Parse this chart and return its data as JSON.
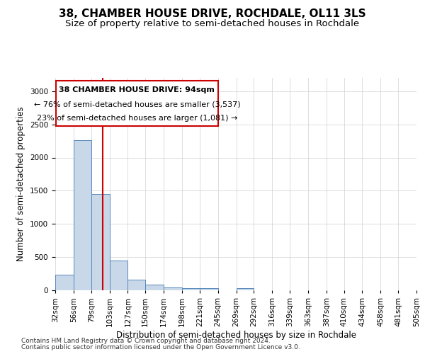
{
  "title": "38, CHAMBER HOUSE DRIVE, ROCHDALE, OL11 3LS",
  "subtitle": "Size of property relative to semi-detached houses in Rochdale",
  "xlabel": "Distribution of semi-detached houses by size in Rochdale",
  "ylabel": "Number of semi-detached properties",
  "footnote1": "Contains HM Land Registry data © Crown copyright and database right 2024.",
  "footnote2": "Contains public sector information licensed under the Open Government Licence v3.0.",
  "annotation_title": "38 CHAMBER HOUSE DRIVE: 94sqm",
  "annotation_line1": "← 76% of semi-detached houses are smaller (3,537)",
  "annotation_line2": "23% of semi-detached houses are larger (1,081) →",
  "property_size": 94,
  "bin_edges": [
    32,
    56,
    79,
    103,
    127,
    150,
    174,
    198,
    221,
    245,
    269,
    292,
    316,
    339,
    363,
    387,
    410,
    434,
    458,
    481,
    505
  ],
  "bin_labels": [
    "32sqm",
    "56sqm",
    "79sqm",
    "103sqm",
    "127sqm",
    "150sqm",
    "174sqm",
    "198sqm",
    "221sqm",
    "245sqm",
    "269sqm",
    "292sqm",
    "316sqm",
    "339sqm",
    "363sqm",
    "387sqm",
    "410sqm",
    "434sqm",
    "458sqm",
    "481sqm",
    "505sqm"
  ],
  "counts": [
    230,
    2260,
    1450,
    450,
    155,
    90,
    45,
    35,
    30,
    0,
    30,
    0,
    0,
    0,
    0,
    0,
    0,
    0,
    0,
    0
  ],
  "bar_color": "#c8d8e8",
  "bar_edge_color": "#5588bb",
  "vline_color": "#cc0000",
  "vline_x": 94,
  "annotation_box_edge_color": "#cc0000",
  "grid_color": "#d0d0d0",
  "ylim": [
    0,
    3200
  ],
  "yticks": [
    0,
    500,
    1000,
    1500,
    2000,
    2500,
    3000
  ],
  "background_color": "#ffffff",
  "title_fontsize": 11,
  "subtitle_fontsize": 9.5,
  "axis_label_fontsize": 8.5,
  "tick_fontsize": 7.5,
  "annotation_fontsize": 8,
  "footnote_fontsize": 6.5
}
